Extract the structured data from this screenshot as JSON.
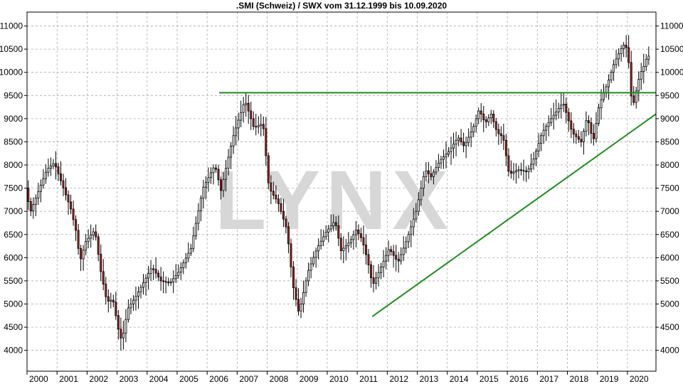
{
  "chart_data": {
    "type": "candlestick",
    "title": ".SMI (Schweiz) / SWX vom 31.12.1999 bis 10.09.2020",
    "xlabel": "",
    "ylabel": "",
    "xlim": [
      2000.0,
      2020.95
    ],
    "ylim": [
      3550,
      11300
    ],
    "grid": true,
    "x_ticks": [
      "2000",
      "2001",
      "2002",
      "2003",
      "2004",
      "2005",
      "2006",
      "2007",
      "2008",
      "2009",
      "2010",
      "2011",
      "2012",
      "2013",
      "2014",
      "2015",
      "2016",
      "2017",
      "2018",
      "2019",
      "2020"
    ],
    "y_ticks": [
      4000,
      4500,
      5000,
      5500,
      6000,
      6500,
      7000,
      7500,
      8000,
      8500,
      9000,
      9500,
      10000,
      10500,
      11000
    ],
    "watermark": "LYNX",
    "colors": {
      "up": "#ffffff",
      "down": "#b22222",
      "wick": "#000000",
      "trendline": "#1e8c1e",
      "grid": "#aaaaaa"
    },
    "trendlines": [
      {
        "x": [
          2006.4,
          2020.95
        ],
        "y": [
          9560,
          9560
        ]
      },
      {
        "x": [
          2011.5,
          2020.95
        ],
        "y": [
          4730,
          9100
        ]
      }
    ],
    "anchors": [
      [
        2000.0,
        7500
      ],
      [
        2000.15,
        6980
      ],
      [
        2000.4,
        7400
      ],
      [
        2000.7,
        7900
      ],
      [
        2000.95,
        8050
      ],
      [
        2001.2,
        7600
      ],
      [
        2001.5,
        7050
      ],
      [
        2001.7,
        6500
      ],
      [
        2001.8,
        5900
      ],
      [
        2002.0,
        6350
      ],
      [
        2002.3,
        6600
      ],
      [
        2002.5,
        5700
      ],
      [
        2002.7,
        5050
      ],
      [
        2002.9,
        5100
      ],
      [
        2003.1,
        4400
      ],
      [
        2003.2,
        4200
      ],
      [
        2003.4,
        4900
      ],
      [
        2003.7,
        5200
      ],
      [
        2003.95,
        5500
      ],
      [
        2004.2,
        5800
      ],
      [
        2004.5,
        5500
      ],
      [
        2004.8,
        5450
      ],
      [
        2005.1,
        5700
      ],
      [
        2005.5,
        6200
      ],
      [
        2005.9,
        7500
      ],
      [
        2006.3,
        8000
      ],
      [
        2006.5,
        7450
      ],
      [
        2006.9,
        8600
      ],
      [
        2007.3,
        9400
      ],
      [
        2007.6,
        8800
      ],
      [
        2007.9,
        8900
      ],
      [
        2008.1,
        7500
      ],
      [
        2008.4,
        7200
      ],
      [
        2008.7,
        6600
      ],
      [
        2008.9,
        5400
      ],
      [
        2009.1,
        4800
      ],
      [
        2009.4,
        5700
      ],
      [
        2009.7,
        6200
      ],
      [
        2010.0,
        6550
      ],
      [
        2010.3,
        6800
      ],
      [
        2010.5,
        6150
      ],
      [
        2010.8,
        6350
      ],
      [
        2011.0,
        6600
      ],
      [
        2011.2,
        6400
      ],
      [
        2011.4,
        5900
      ],
      [
        2011.55,
        5400
      ],
      [
        2011.8,
        5750
      ],
      [
        2012.1,
        6200
      ],
      [
        2012.4,
        5900
      ],
      [
        2012.7,
        6400
      ],
      [
        2013.0,
        7000
      ],
      [
        2013.3,
        7900
      ],
      [
        2013.5,
        7750
      ],
      [
        2013.8,
        8100
      ],
      [
        2014.1,
        8300
      ],
      [
        2014.4,
        8600
      ],
      [
        2014.6,
        8400
      ],
      [
        2014.9,
        8800
      ],
      [
        2015.1,
        9200
      ],
      [
        2015.3,
        8900
      ],
      [
        2015.5,
        9100
      ],
      [
        2015.7,
        8700
      ],
      [
        2015.9,
        8600
      ],
      [
        2016.1,
        7800
      ],
      [
        2016.4,
        7900
      ],
      [
        2016.7,
        7850
      ],
      [
        2016.9,
        8100
      ],
      [
        2017.2,
        8700
      ],
      [
        2017.5,
        9000
      ],
      [
        2017.9,
        9350
      ],
      [
        2018.2,
        8700
      ],
      [
        2018.5,
        8500
      ],
      [
        2018.7,
        9050
      ],
      [
        2018.9,
        8500
      ],
      [
        2019.1,
        9300
      ],
      [
        2019.4,
        9800
      ],
      [
        2019.6,
        10200
      ],
      [
        2019.9,
        10600
      ],
      [
        2020.05,
        10500
      ],
      [
        2020.2,
        9200
      ],
      [
        2020.45,
        9950
      ],
      [
        2020.6,
        10150
      ],
      [
        2020.7,
        10350
      ]
    ]
  }
}
